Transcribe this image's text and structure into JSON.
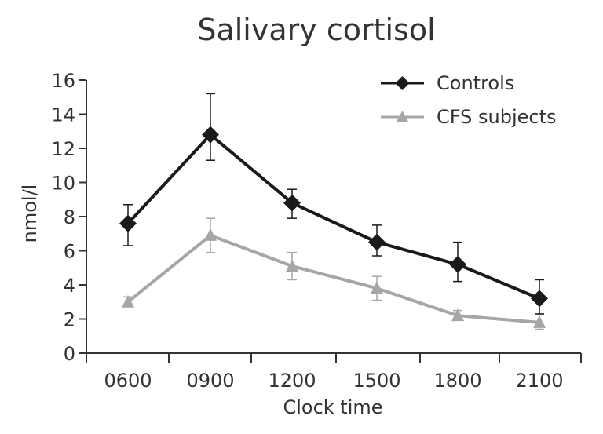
{
  "chart_data": {
    "type": "line",
    "title": "Salivary cortisol",
    "xlabel": "Clock time",
    "ylabel": "nmol/l",
    "categories": [
      "0600",
      "0900",
      "1200",
      "1500",
      "1800",
      "2100"
    ],
    "ylim": [
      0,
      16
    ],
    "yticks": [
      0,
      2,
      4,
      6,
      8,
      10,
      12,
      14,
      16
    ],
    "ytick_labels": [
      "0",
      "2",
      "4",
      "6",
      "8",
      "10",
      "12",
      "14",
      "16"
    ],
    "legend_position": "top-right",
    "series": [
      {
        "name": "Controls",
        "color": "#1a1a1a",
        "marker": "diamond",
        "values": [
          7.6,
          12.8,
          8.8,
          6.5,
          5.2,
          3.2
        ],
        "error_low": [
          1.3,
          1.5,
          0.9,
          0.8,
          1.0,
          0.9
        ],
        "error_high": [
          1.1,
          2.4,
          0.8,
          1.0,
          1.3,
          1.1
        ]
      },
      {
        "name": "CFS subjects",
        "color": "#a6a6a6",
        "marker": "triangle",
        "values": [
          3.0,
          6.9,
          5.1,
          3.8,
          2.2,
          1.8
        ],
        "error_low": [
          0.2,
          1.0,
          0.8,
          0.7,
          0.2,
          0.4
        ],
        "error_high": [
          0.3,
          1.0,
          0.8,
          0.7,
          0.3,
          0.5
        ]
      }
    ]
  }
}
